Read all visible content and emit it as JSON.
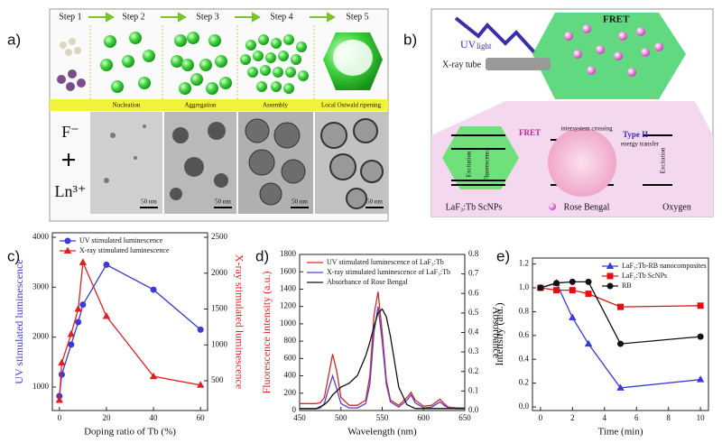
{
  "panel_a": {
    "label": "a)",
    "steps": [
      "Step 1",
      "Step 2",
      "Step 3",
      "Step 4",
      "Step 5"
    ],
    "stages": [
      "Nucleation",
      "Aggregation",
      "Assembly",
      "Local Ostwald ripening"
    ],
    "ions": [
      "F⁻",
      "+",
      "Ln³⁺"
    ],
    "scale_bars": [
      "50 nm",
      "50 nm",
      "50 nm",
      "50 nm"
    ]
  },
  "panel_b": {
    "label": "b)",
    "uv": "UV",
    "light": "light",
    "xray": "X-ray tube",
    "fret_top": "FRET",
    "fret": "FRET",
    "type": "Type II",
    "energy": "energy transfer",
    "excitation": [
      "Excitation",
      "Excitation"
    ],
    "fluorescence": "Fluorescence",
    "isc": "intersystem crossing",
    "captions": [
      "LaF₃:Tb ScNPs",
      "Rose Bengal",
      "Oxygen"
    ]
  },
  "chart_data": [
    {
      "type": "line",
      "panel_label": "c)",
      "xlabel": "Doping ratio of Tb (%)",
      "ylabel": "UV stimulated luminescence",
      "y2label": "X-ray stimulated luminescence",
      "x": [
        0,
        1,
        5,
        8,
        10,
        20,
        40,
        60
      ],
      "xlim": [
        -3,
        63
      ],
      "xticks": [
        0,
        20,
        40,
        60
      ],
      "ylim": [
        530,
        4090
      ],
      "yticks": [
        1000,
        2000,
        3000,
        4000
      ],
      "y2lim": [
        85,
        2563
      ],
      "y2ticks": [
        500,
        1000,
        1500,
        2000,
        2500
      ],
      "legend": "upper left",
      "series": [
        {
          "name": "UV stimulated luminescence",
          "color": "#3a3ad8",
          "marker": "circle",
          "values": [
            820,
            1250,
            1850,
            2300,
            2650,
            3450,
            2950,
            2150
          ]
        },
        {
          "name": "X-ray stimulated luminescence",
          "color": "#e02020",
          "marker": "triangle",
          "axis": "y2",
          "values": [
            230,
            750,
            1150,
            1500,
            2150,
            1400,
            560,
            440
          ]
        }
      ]
    },
    {
      "type": "line",
      "panel_label": "d)",
      "xlabel": "Wavelength (nm)",
      "ylabel": "Fluorescence intensity (a.u.)",
      "y2label": "Absorbance",
      "x": [
        450,
        460,
        470,
        475,
        480,
        485,
        490,
        495,
        500,
        510,
        520,
        530,
        535,
        540,
        545,
        550,
        555,
        560,
        570,
        580,
        585,
        590,
        600,
        610,
        620,
        625,
        630,
        640,
        650
      ],
      "xlim": [
        450,
        650
      ],
      "xticks": [
        450,
        500,
        550,
        600,
        650
      ],
      "ylim": [
        0,
        1800
      ],
      "yticks": [
        0,
        200,
        400,
        600,
        800,
        1000,
        1200,
        1400,
        1600,
        1800
      ],
      "y2lim": [
        0,
        0.8
      ],
      "y2ticks": [
        {
          "value": 0,
          "label": "0.0"
        },
        0.1,
        0.2,
        0.3,
        0.4,
        0.5,
        0.6,
        0.7,
        0.8
      ],
      "legend": "upper left",
      "series": [
        {
          "name": "UV stimulated luminescence of LaF₃:Tb",
          "color": "#d62728",
          "marker": null,
          "values": [
            80,
            80,
            80,
            90,
            150,
            400,
            650,
            450,
            150,
            60,
            60,
            120,
            400,
            1100,
            1370,
            900,
            350,
            120,
            60,
            150,
            210,
            120,
            50,
            60,
            130,
            80,
            40,
            30,
            30
          ]
        },
        {
          "name": "X-ray stimulated luminescence of LaF₃:Tb",
          "color": "#5b3fc4",
          "marker": null,
          "values": [
            20,
            20,
            20,
            30,
            80,
            250,
            400,
            250,
            80,
            30,
            30,
            80,
            300,
            900,
            1200,
            800,
            300,
            100,
            40,
            120,
            180,
            90,
            30,
            40,
            100,
            60,
            30,
            20,
            20
          ]
        },
        {
          "name": "Absorbance of Rose Bengal",
          "color": "#111111",
          "marker": null,
          "axis": "y2",
          "values": [
            0.01,
            0.01,
            0.01,
            0.02,
            0.03,
            0.05,
            0.08,
            0.1,
            0.12,
            0.14,
            0.18,
            0.28,
            0.35,
            0.43,
            0.5,
            0.52,
            0.48,
            0.38,
            0.12,
            0.03,
            0.02,
            0.01,
            0.01,
            0.01,
            0.01,
            0.01,
            0.01,
            0.01,
            0.01
          ]
        }
      ]
    },
    {
      "type": "line",
      "panel_label": "e)",
      "xlabel": "Time (min)",
      "ylabel": "Intensity (a.u.)",
      "x": [
        0,
        1,
        2,
        3,
        5,
        10
      ],
      "xlim": [
        -0.5,
        10.5
      ],
      "xticks": [
        0,
        2,
        4,
        6,
        8,
        10
      ],
      "ylim": [
        -0.03,
        1.25
      ],
      "yticks": [
        {
          "value": 0,
          "label": "0.0"
        },
        0.2,
        0.4,
        0.6,
        0.8,
        {
          "value": 1,
          "label": "1.0"
        },
        1.2
      ],
      "legend": "upper right",
      "series": [
        {
          "name": "LaF₃:Tb-RB nanocomposites",
          "color": "#3b3bd8",
          "marker": "triangle",
          "values": [
            1.0,
            1.04,
            0.75,
            0.53,
            0.16,
            0.23
          ]
        },
        {
          "name": "LaF₃:Tb ScNPs",
          "color": "#e01010",
          "marker": "square",
          "values": [
            1.0,
            0.98,
            0.98,
            0.95,
            0.84,
            0.85
          ]
        },
        {
          "name": "RB",
          "color": "#111111",
          "marker": "circle",
          "values": [
            1.0,
            1.04,
            1.05,
            1.05,
            0.53,
            0.59
          ]
        }
      ]
    }
  ]
}
